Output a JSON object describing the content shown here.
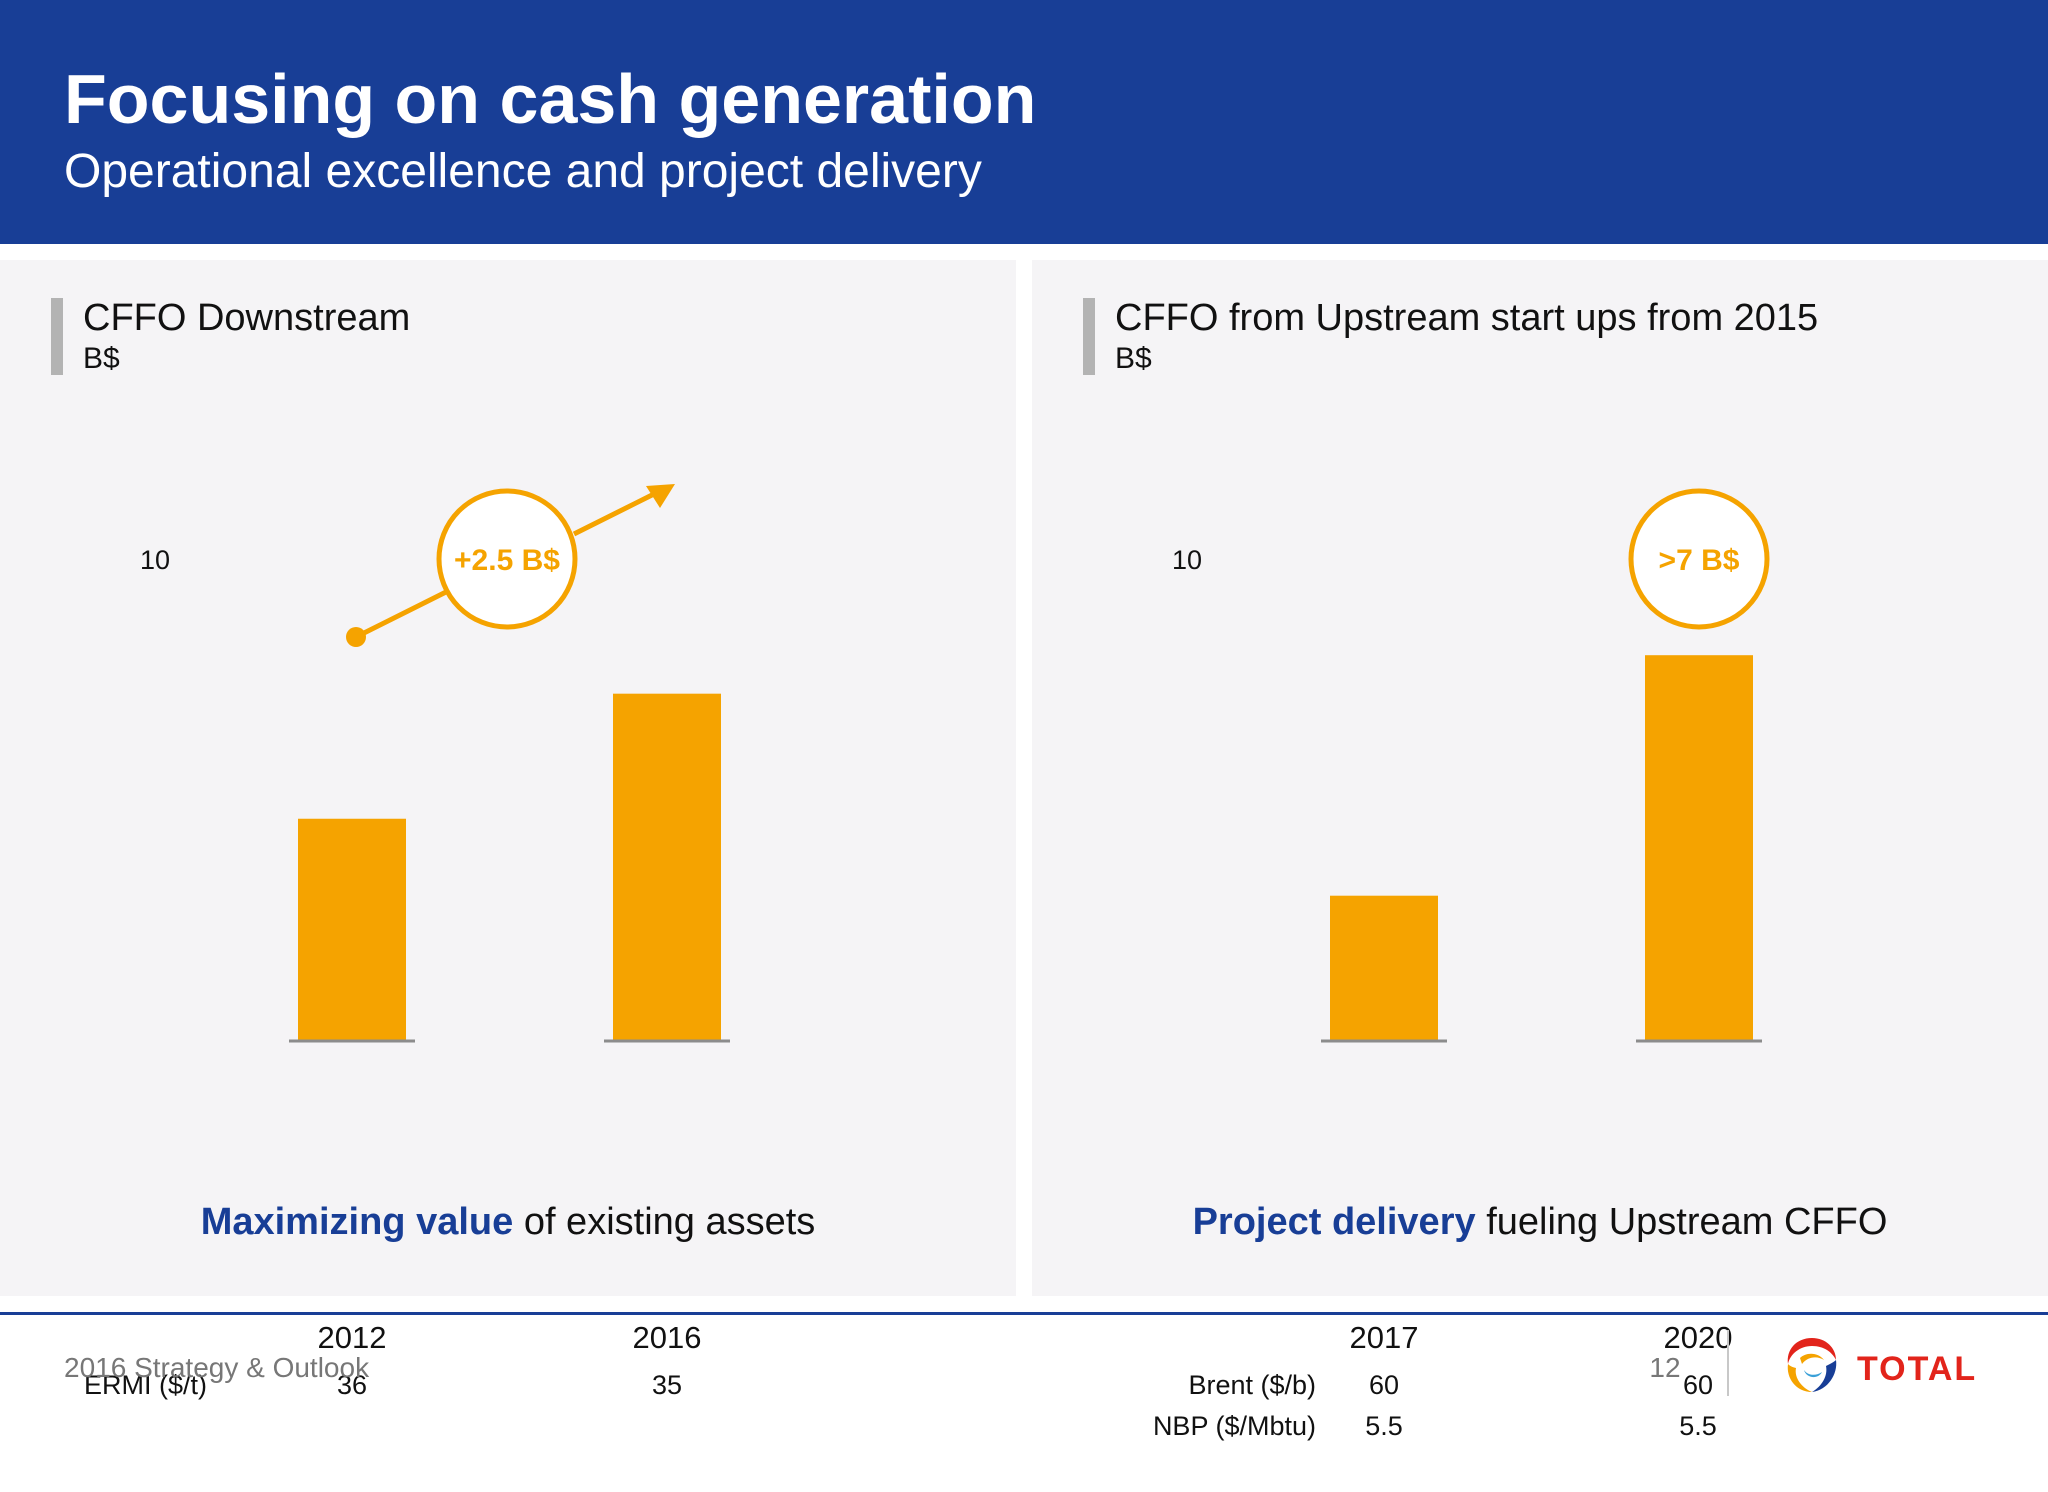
{
  "header": {
    "title": "Focusing on cash generation",
    "subtitle": "Operational excellence and project delivery"
  },
  "colors": {
    "brand_blue": "#183e96",
    "bar_orange": "#f5a300",
    "panel_bg": "#f5f4f6"
  },
  "chart_data": [
    {
      "type": "bar",
      "title": "CFFO Downstream",
      "ylabel": "B$",
      "y_tick_labels": [
        "10"
      ],
      "categories": [
        "2012",
        "2016"
      ],
      "values": [
        4.6,
        7.2
      ],
      "ylim": [
        0,
        10
      ],
      "bar_color": "#f5a300",
      "annotation": "+2.5 B$",
      "table": {
        "rows": [
          {
            "label": "ERMI ($/t)",
            "values": [
              "36",
              "35"
            ]
          }
        ]
      },
      "caption": {
        "strong": "Maximizing value",
        "rest": "of existing assets"
      }
    },
    {
      "type": "bar",
      "title": "CFFO from Upstream start ups from 2015",
      "ylabel": "B$",
      "y_tick_labels": [
        "10"
      ],
      "categories": [
        "2017",
        "2020"
      ],
      "values": [
        3.0,
        8.0
      ],
      "ylim": [
        0,
        10
      ],
      "bar_color": "#f5a300",
      "annotation": ">7 B$",
      "table": {
        "rows": [
          {
            "label": "Brent ($/b)",
            "values": [
              "60",
              "60"
            ]
          },
          {
            "label": "NBP ($/Mbtu)",
            "values": [
              "5.5",
              "5.5"
            ]
          }
        ]
      },
      "caption": {
        "strong": "Project delivery",
        "rest": "fueling Upstream CFFO"
      }
    }
  ],
  "footer": {
    "text": "2016 Strategy & Outlook",
    "page": "12",
    "logo_text": "TOTAL"
  }
}
